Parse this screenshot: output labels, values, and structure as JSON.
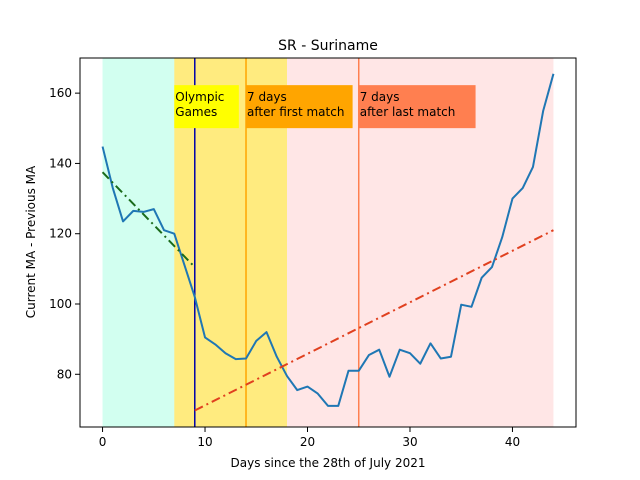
{
  "chart_data": {
    "type": "line",
    "title": "SR - Suriname",
    "xlabel": "Days since the 28th of July 2021",
    "ylabel": "Current MA - Previous MA",
    "xlim": [
      -2.2,
      46.2
    ],
    "ylim": [
      65,
      170
    ],
    "xticks": [
      0,
      10,
      20,
      30,
      40
    ],
    "yticks": [
      80,
      100,
      120,
      140,
      160
    ],
    "grid": false,
    "regions": [
      {
        "from": 0,
        "to": 7,
        "color": "#7fffd4",
        "opacity": 0.35
      },
      {
        "from": 7,
        "to": 18,
        "color": "#ffd700",
        "opacity": 0.5
      },
      {
        "from": 18,
        "to": 44,
        "color": "#ffb6b6",
        "opacity": 0.35
      }
    ],
    "vlines": [
      {
        "x": 9,
        "color": "#0000aa"
      },
      {
        "x": 14,
        "color": "#ffa500"
      },
      {
        "x": 25,
        "color": "#ff7f50"
      }
    ],
    "annotations": [
      {
        "text_lines": [
          "Olympic",
          "Games"
        ],
        "x": 7,
        "y": 160,
        "bg": "#ffff00",
        "box_x_end": 13.3
      },
      {
        "text_lines": [
          "7 days",
          "after first match"
        ],
        "x": 14,
        "y": 160,
        "bg": "#ffa500",
        "box_x_end": 24.4
      },
      {
        "text_lines": [
          "7 days",
          "after last match"
        ],
        "x": 25,
        "y": 160,
        "bg": "#ff7f50",
        "box_x_end": 36.4
      }
    ],
    "series": [
      {
        "type": "line",
        "color": "#1f77b4",
        "dash": "",
        "x": [
          0,
          1,
          2,
          3,
          4,
          5,
          6,
          7,
          8,
          9,
          10,
          11,
          12,
          13,
          14,
          15,
          16,
          17,
          18,
          19,
          20,
          21,
          22,
          23,
          24,
          25,
          26,
          27,
          28,
          29,
          30,
          31,
          32,
          33,
          34,
          35,
          36,
          37,
          38,
          39,
          40,
          41,
          42,
          43,
          44
        ],
        "y": [
          144.8,
          133,
          123.5,
          126.5,
          126.2,
          127,
          121,
          120,
          111,
          102,
          90.5,
          88.5,
          86,
          84.3,
          84.5,
          89.5,
          92,
          85,
          79.5,
          75.5,
          76.5,
          74.5,
          71,
          71,
          81,
          81,
          85.5,
          87,
          79.3,
          87,
          86,
          83,
          88.8,
          84.5,
          85,
          99.8,
          99.2,
          107.5,
          110.5,
          119,
          130,
          133,
          139,
          155,
          165.5
        ]
      },
      {
        "type": "trend",
        "color": "#1a6b1a",
        "dash": "9,4,2,4",
        "x": [
          0,
          9
        ],
        "y": [
          137.5,
          110.5
        ]
      },
      {
        "type": "trend",
        "color": "#e0401f",
        "dash": "9,4,2,4",
        "x": [
          9,
          44
        ],
        "y": [
          69.7,
          121
        ]
      }
    ]
  }
}
